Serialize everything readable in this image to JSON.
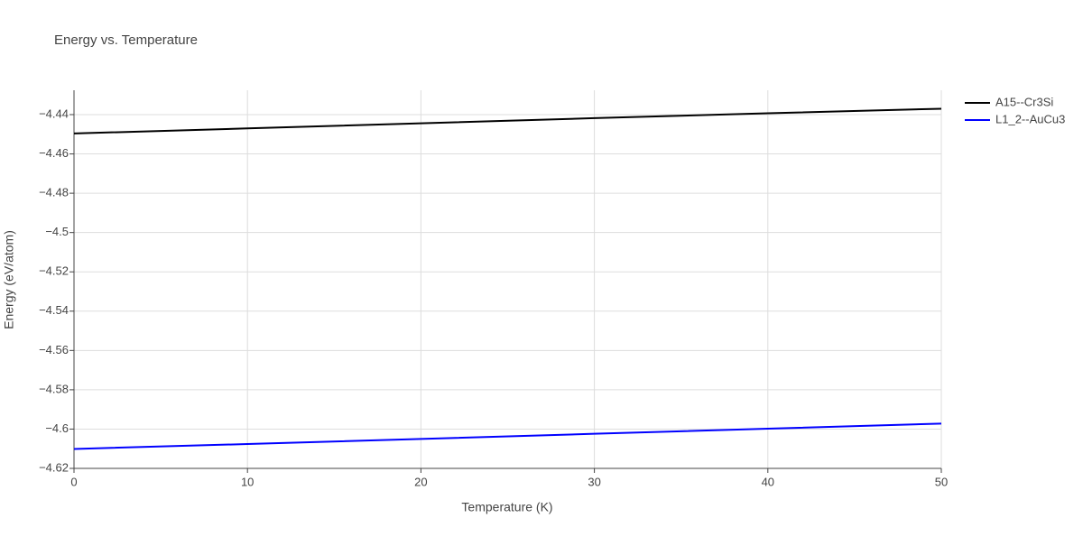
{
  "chart_data": {
    "type": "line",
    "title": "Energy vs. Temperature",
    "x_label": "Temperature (K)",
    "y_label": "Energy (eV/atom)",
    "x": [
      0,
      10,
      20,
      30,
      40,
      50
    ],
    "series": [
      {
        "name": "A15--Cr3Si",
        "color": "#000000",
        "values": [
          -4.4496,
          -4.447,
          -4.4444,
          -4.4418,
          -4.4393,
          -4.437
        ]
      },
      {
        "name": "L1_2--AuCu3",
        "color": "#0000ff",
        "values": [
          -4.6101,
          -4.6076,
          -4.605,
          -4.6024,
          -4.5998,
          -4.5972
        ]
      }
    ],
    "xlim": [
      0,
      50
    ],
    "xticks": [
      0,
      10,
      20,
      30,
      40,
      50
    ],
    "ylim": [
      -4.62,
      -4.4276
    ],
    "yticks": [
      {
        "value": -4.62,
        "label": "−4.62"
      },
      {
        "value": -4.6,
        "label": "−4.6"
      },
      {
        "value": -4.58,
        "label": "−4.58"
      },
      {
        "value": -4.56,
        "label": "−4.56"
      },
      {
        "value": -4.54,
        "label": "−4.54"
      },
      {
        "value": -4.52,
        "label": "−4.52"
      },
      {
        "value": -4.5,
        "label": "−4.5"
      },
      {
        "value": -4.48,
        "label": "−4.48"
      },
      {
        "value": -4.46,
        "label": "−4.46"
      },
      {
        "value": -4.44,
        "label": "−4.44"
      }
    ],
    "grid": true,
    "legend": "outside-top-right"
  }
}
